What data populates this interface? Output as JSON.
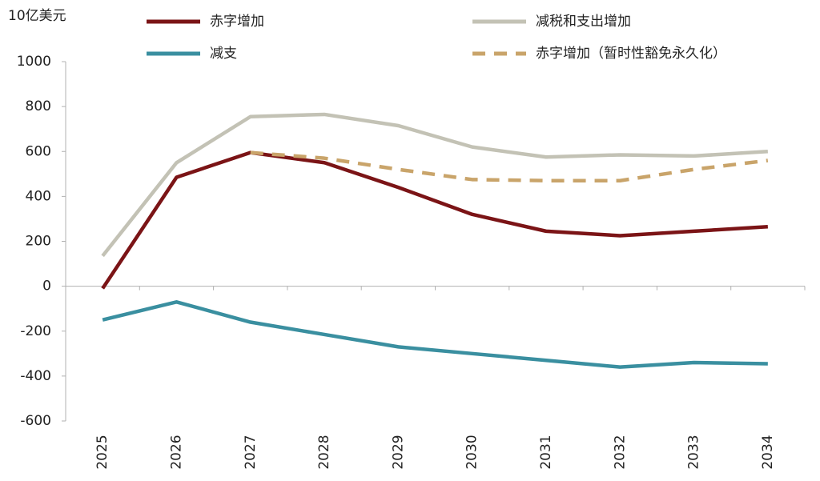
{
  "chart_data": {
    "type": "line",
    "y_label": "10亿美元",
    "categories": [
      "2025",
      "2026",
      "2027",
      "2028",
      "2029",
      "2030",
      "2031",
      "2032",
      "2033",
      "2034"
    ],
    "series": [
      {
        "name": "赤字增加",
        "color": "#7b1416",
        "line_style": "solid",
        "values": [
          -10,
          485,
          595,
          550,
          440,
          320,
          245,
          225,
          245,
          265
        ]
      },
      {
        "name": "减税和支出增加",
        "color": "#c3c2b5",
        "line_style": "solid",
        "values": [
          135,
          550,
          755,
          765,
          715,
          620,
          575,
          585,
          580,
          600
        ]
      },
      {
        "name": "减支",
        "color": "#3a8fa0",
        "line_style": "solid",
        "values": [
          -150,
          -70,
          -160,
          -215,
          -270,
          -300,
          -330,
          -360,
          -340,
          -345
        ]
      },
      {
        "name": "赤字增加（暂时性豁免永久化）",
        "color": "#c9a46a",
        "line_style": "dashed",
        "values": [
          null,
          null,
          595,
          570,
          520,
          475,
          470,
          470,
          520,
          560
        ]
      }
    ],
    "ylim": [
      -600,
      1000
    ],
    "yticks": [
      -600,
      -400,
      -200,
      0,
      200,
      400,
      600,
      800,
      1000
    ],
    "grid": false
  }
}
